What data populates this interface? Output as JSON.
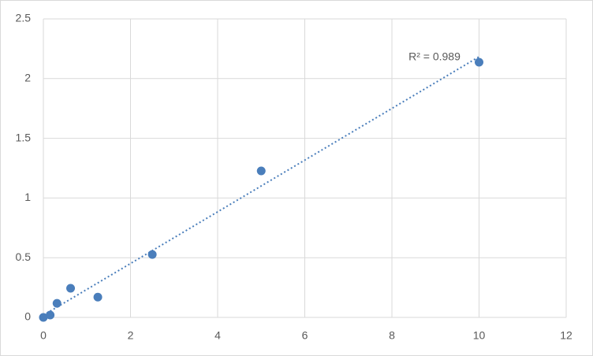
{
  "chart_data": {
    "type": "scatter",
    "x": [
      0,
      0.156,
      0.3125,
      0.625,
      1.25,
      2.5,
      5,
      10
    ],
    "values": [
      0,
      0.02,
      0.118,
      0.244,
      0.17,
      0.527,
      1.227,
      2.137
    ],
    "color": "#4a7ebb",
    "xlim": [
      0,
      12
    ],
    "xticks": [
      0,
      2,
      4,
      6,
      8,
      10,
      12
    ],
    "ylim": [
      0,
      2.5
    ],
    "yticks": [
      0,
      0.5,
      1,
      1.5,
      2,
      2.5
    ],
    "grid": true,
    "trendline": "linear",
    "annotation": "R² = 0.989"
  }
}
